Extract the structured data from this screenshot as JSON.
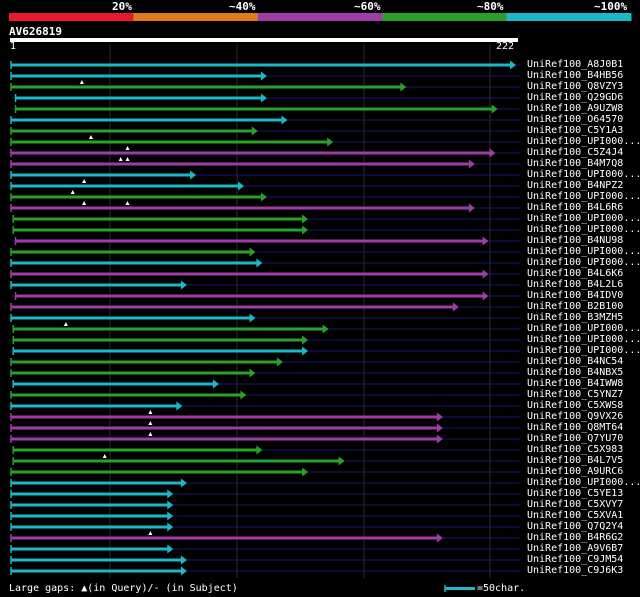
{
  "header": {
    "percent_labels": [
      "20%",
      "~40%",
      "~60%",
      "~80%",
      "~100%"
    ],
    "identity_colors": [
      "#e8192e",
      "#e07a1c",
      "#a03ca8",
      "#2aa02a",
      "#1ab8c8"
    ]
  },
  "query": {
    "accession": "AV626819",
    "start_label": "1",
    "end_label": "222",
    "length": 222
  },
  "hits": [
    {
      "name": "UniRef100_A8J0B1",
      "color": "#1ab8c8",
      "start": 1,
      "end": 222,
      "marks": []
    },
    {
      "name": "UniRef100_B4HB56",
      "color": "#1ab8c8",
      "start": 1,
      "end": 113,
      "marks": []
    },
    {
      "name": "UniRef100_Q8VZY3",
      "color": "#2aa02a",
      "start": 1,
      "end": 174,
      "marks": [
        32
      ]
    },
    {
      "name": "UniRef100_Q29GD6",
      "color": "#1ab8c8",
      "start": 3,
      "end": 113,
      "marks": []
    },
    {
      "name": "UniRef100_A9UZW8",
      "color": "#2aa02a",
      "start": 3,
      "end": 214,
      "marks": []
    },
    {
      "name": "UniRef100_O64570",
      "color": "#1ab8c8",
      "start": 1,
      "end": 122,
      "marks": []
    },
    {
      "name": "UniRef100_C5Y1A3",
      "color": "#2aa02a",
      "start": 1,
      "end": 109,
      "marks": []
    },
    {
      "name": "UniRef100_UPI000...",
      "color": "#2aa02a",
      "start": 1,
      "end": 142,
      "marks": [
        36
      ]
    },
    {
      "name": "UniRef100_C5Z4J4",
      "color": "#a03ca8",
      "start": 1,
      "end": 213,
      "marks": [
        52
      ]
    },
    {
      "name": "UniRef100_B4M7Q8",
      "color": "#a03ca8",
      "start": 1,
      "end": 204,
      "marks": [
        49,
        52
      ]
    },
    {
      "name": "UniRef100_UPI000...",
      "color": "#1ab8c8",
      "start": 1,
      "end": 82,
      "marks": []
    },
    {
      "name": "UniRef100_B4NPZ2",
      "color": "#1ab8c8",
      "start": 1,
      "end": 103,
      "marks": [
        33
      ]
    },
    {
      "name": "UniRef100_UPI000...",
      "color": "#2aa02a",
      "start": 1,
      "end": 113,
      "marks": [
        28
      ]
    },
    {
      "name": "UniRef100_B4L6R6",
      "color": "#a03ca8",
      "start": 1,
      "end": 204,
      "marks": [
        33,
        52
      ]
    },
    {
      "name": "UniRef100_UPI000...",
      "color": "#2aa02a",
      "start": 2,
      "end": 131,
      "marks": []
    },
    {
      "name": "UniRef100_UPI000...",
      "color": "#2aa02a",
      "start": 2,
      "end": 131,
      "marks": []
    },
    {
      "name": "UniRef100_B4NU98",
      "color": "#a03ca8",
      "start": 3,
      "end": 210,
      "marks": []
    },
    {
      "name": "UniRef100_UPI000...",
      "color": "#2aa02a",
      "start": 1,
      "end": 108,
      "marks": []
    },
    {
      "name": "UniRef100_UPI000...",
      "color": "#1ab8c8",
      "start": 1,
      "end": 111,
      "marks": []
    },
    {
      "name": "UniRef100_B4L6K6",
      "color": "#a03ca8",
      "start": 1,
      "end": 210,
      "marks": []
    },
    {
      "name": "UniRef100_B4L2L6",
      "color": "#1ab8c8",
      "start": 1,
      "end": 78,
      "marks": []
    },
    {
      "name": "UniRef100_B4IDV0",
      "color": "#a03ca8",
      "start": 3,
      "end": 210,
      "marks": []
    },
    {
      "name": "UniRef100_B2B100",
      "color": "#a03ca8",
      "start": 1,
      "end": 197,
      "marks": []
    },
    {
      "name": "UniRef100_B3MZH5",
      "color": "#1ab8c8",
      "start": 1,
      "end": 108,
      "marks": []
    },
    {
      "name": "UniRef100_UPI000...",
      "color": "#2aa02a",
      "start": 2,
      "end": 140,
      "marks": [
        25
      ]
    },
    {
      "name": "UniRef100_UPI000...",
      "color": "#2aa02a",
      "start": 2,
      "end": 131,
      "marks": []
    },
    {
      "name": "UniRef100_UPI000...",
      "color": "#1ab8c8",
      "start": 2,
      "end": 131,
      "marks": []
    },
    {
      "name": "UniRef100_B4NC54",
      "color": "#2aa02a",
      "start": 1,
      "end": 120,
      "marks": []
    },
    {
      "name": "UniRef100_B4NBX5",
      "color": "#2aa02a",
      "start": 1,
      "end": 108,
      "marks": []
    },
    {
      "name": "UniRef100_B4IWW8",
      "color": "#1ab8c8",
      "start": 2,
      "end": 92,
      "marks": []
    },
    {
      "name": "UniRef100_C5YNZ7",
      "color": "#2aa02a",
      "start": 1,
      "end": 104,
      "marks": []
    },
    {
      "name": "UniRef100_C5XWS8",
      "color": "#1ab8c8",
      "start": 1,
      "end": 76,
      "marks": []
    },
    {
      "name": "UniRef100_Q9VX26",
      "color": "#a03ca8",
      "start": 1,
      "end": 190,
      "marks": [
        62
      ]
    },
    {
      "name": "UniRef100_Q8MT64",
      "color": "#a03ca8",
      "start": 1,
      "end": 190,
      "marks": [
        62
      ]
    },
    {
      "name": "UniRef100_Q7YU70",
      "color": "#a03ca8",
      "start": 1,
      "end": 190,
      "marks": [
        62
      ]
    },
    {
      "name": "UniRef100_C5X983",
      "color": "#2aa02a",
      "start": 2,
      "end": 111,
      "marks": []
    },
    {
      "name": "UniRef100_B4L7V5",
      "color": "#2aa02a",
      "start": 2,
      "end": 147,
      "marks": [
        42
      ]
    },
    {
      "name": "UniRef100_A9URC6",
      "color": "#2aa02a",
      "start": 1,
      "end": 131,
      "marks": []
    },
    {
      "name": "UniRef100_UPI000...",
      "color": "#1ab8c8",
      "start": 1,
      "end": 78,
      "marks": []
    },
    {
      "name": "UniRef100_C5YE13",
      "color": "#1ab8c8",
      "start": 1,
      "end": 72,
      "marks": []
    },
    {
      "name": "UniRef100_C5XVY7",
      "color": "#1ab8c8",
      "start": 1,
      "end": 72,
      "marks": []
    },
    {
      "name": "UniRef100_C5XVA1",
      "color": "#1ab8c8",
      "start": 1,
      "end": 72,
      "marks": []
    },
    {
      "name": "UniRef100_Q7Q2Y4",
      "color": "#1ab8c8",
      "start": 1,
      "end": 72,
      "marks": []
    },
    {
      "name": "UniRef100_B4R6G2",
      "color": "#a03ca8",
      "start": 1,
      "end": 190,
      "marks": [
        62
      ]
    },
    {
      "name": "UniRef100_A9V6B7",
      "color": "#1ab8c8",
      "start": 1,
      "end": 72,
      "marks": []
    },
    {
      "name": "UniRef100_C9JM54",
      "color": "#1ab8c8",
      "start": 1,
      "end": 78,
      "marks": []
    },
    {
      "name": "UniRef100_C9J6K3",
      "color": "#1ab8c8",
      "start": 1,
      "end": 78,
      "marks": []
    }
  ],
  "footer": {
    "gaps_text": "Large gaps: ▲(in Query)/- (in Subject)",
    "scale_text": "=50char."
  }
}
